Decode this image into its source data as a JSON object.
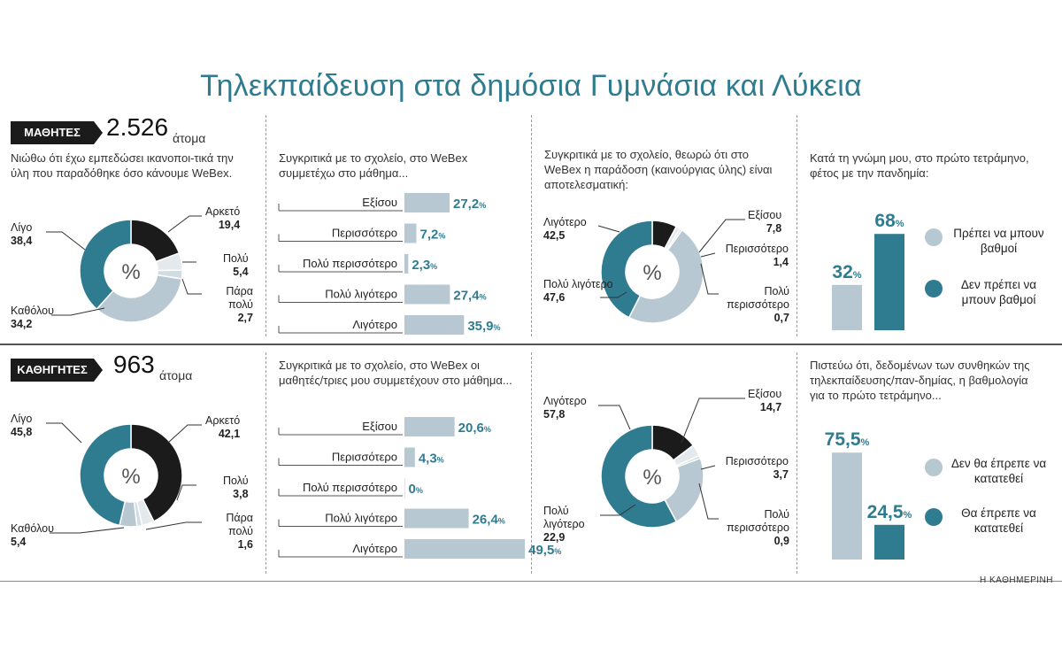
{
  "title": "Τηλεκπαίδευση στα δημόσια Γυμνάσια και Λύκεια",
  "source": "Η ΚΑΘΗΜΕΡΙΝΗ",
  "colors": {
    "dark": "#1b1b1b",
    "teal": "#2f7c91",
    "light": "#b8c8d2",
    "pale": "#d9e2e8",
    "accent": "#2f7c91"
  },
  "sections": [
    {
      "group": "ΜΑΘΗΤΕΣ",
      "count": "2.526",
      "unit": "άτομα"
    },
    {
      "group": "ΚΑΘΗΓΗΤΕΣ",
      "count": "963",
      "unit": "άτομα"
    }
  ],
  "chart_data": [
    {
      "type": "pie",
      "variant": "donut",
      "center_label": "%",
      "question": "Νιώθω ότι έχω εμπεδώσει ικανοποι-τικά την ύλη που παραδόθηκε όσο κάνουμε WeBex.",
      "slices": [
        {
          "label": "Αρκετό",
          "value": 19.4,
          "value_label": "19,4",
          "color": "#1b1b1b"
        },
        {
          "label": "Πολύ",
          "value": 5.4,
          "value_label": "5,4",
          "color": "#e3e9ed"
        },
        {
          "label": "Πάρα πολύ",
          "value": 2.7,
          "value_label": "2,7",
          "color": "#d0dbe2"
        },
        {
          "label": "Καθόλου",
          "value": 34.2,
          "value_label": "34,2",
          "color": "#b8c8d2"
        },
        {
          "label": "Λίγο",
          "value": 38.4,
          "value_label": "38,4",
          "color": "#2f7c91"
        }
      ]
    },
    {
      "type": "bar",
      "orientation": "horizontal",
      "question": "Συγκριτικά με το σχολείο, στο WeBex συμμετέχω στο μάθημα...",
      "categories": [
        "Εξίσου",
        "Περισσότερο",
        "Πολύ περισσότερο",
        "Πολύ λιγότερο",
        "Λιγότερο"
      ],
      "values": [
        27.2,
        7.2,
        2.3,
        27.4,
        35.9
      ],
      "value_labels": [
        "27,2",
        "7,2",
        "2,3",
        "27,4",
        "35,9"
      ],
      "unit": "%"
    },
    {
      "type": "pie",
      "variant": "donut",
      "center_label": "%",
      "question": "Συγκριτικά με το σχολείο, θεωρώ ότι στο WeBex η παράδοση (καινούργιας ύλης) είναι αποτελεσματική:",
      "slices": [
        {
          "label": "Εξίσου",
          "value": 7.8,
          "value_label": "7,8",
          "color": "#1b1b1b"
        },
        {
          "label": "Περισσότερο",
          "value": 1.4,
          "value_label": "1,4",
          "color": "#e3e9ed"
        },
        {
          "label": "Πολύ περισσότερο",
          "value": 0.7,
          "value_label": "0,7",
          "color": "#d0dbe2"
        },
        {
          "label": "Πολύ λιγότερο",
          "value": 47.6,
          "value_label": "47,6",
          "color": "#b8c8d2"
        },
        {
          "label": "Λιγότερο",
          "value": 42.5,
          "value_label": "42,5",
          "color": "#2f7c91"
        }
      ]
    },
    {
      "type": "bar",
      "orientation": "vertical",
      "question": "Κατά τη γνώμη μου, στο πρώτο τετράμηνο, φέτος με την πανδημία:",
      "categories": [
        "Πρέπει να μπουν βαθμοί",
        "Δεν πρέπει να μπουν βαθμοί"
      ],
      "values": [
        32,
        68
      ],
      "value_labels": [
        "32",
        "68"
      ],
      "unit": "%",
      "colors": [
        "#b8c8d2",
        "#2f7c91"
      ]
    },
    {
      "type": "pie",
      "variant": "donut",
      "center_label": "%",
      "slices": [
        {
          "label": "Αρκετό",
          "value": 42.1,
          "value_label": "42,1",
          "color": "#1b1b1b"
        },
        {
          "label": "Πολύ",
          "value": 3.8,
          "value_label": "3,8",
          "color": "#e3e9ed"
        },
        {
          "label": "Πάρα πολύ",
          "value": 1.6,
          "value_label": "1,6",
          "color": "#d0dbe2"
        },
        {
          "label": "Καθόλου",
          "value": 5.4,
          "value_label": "5,4",
          "color": "#b8c8d2"
        },
        {
          "label": "Λίγο",
          "value": 45.8,
          "value_label": "45,8",
          "color": "#2f7c91"
        }
      ]
    },
    {
      "type": "bar",
      "orientation": "horizontal",
      "question": "Συγκριτικά με το σχολείο, στο WeBex οι μαθητές/τριες μου συμμετέχουν στο μάθημα...",
      "categories": [
        "Εξίσου",
        "Περισσότερο",
        "Πολύ περισσότερο",
        "Πολύ λιγότερο",
        "Λιγότερο"
      ],
      "values": [
        20.6,
        4.3,
        0,
        26.4,
        49.5
      ],
      "value_labels": [
        "20,6",
        "4,3",
        "0",
        "26,4",
        "49,5"
      ],
      "unit": "%"
    },
    {
      "type": "pie",
      "variant": "donut",
      "center_label": "%",
      "slices": [
        {
          "label": "Εξίσου",
          "value": 14.7,
          "value_label": "14,7",
          "color": "#1b1b1b"
        },
        {
          "label": "Περισσότερο",
          "value": 3.7,
          "value_label": "3,7",
          "color": "#e3e9ed"
        },
        {
          "label": "Πολύ περισσότερο",
          "value": 0.9,
          "value_label": "0,9",
          "color": "#d0dbe2"
        },
        {
          "label": "Πολύ λιγότερο",
          "value": 22.9,
          "value_label": "22,9",
          "color": "#b8c8d2"
        },
        {
          "label": "Λιγότερο",
          "value": 57.8,
          "value_label": "57,8",
          "color": "#2f7c91"
        }
      ]
    },
    {
      "type": "bar",
      "orientation": "vertical",
      "question": "Πιστεύω ότι, δεδομένων των συνθηκών της τηλεκπαίδευσης/παν-δημίας, η βαθμολογία για το πρώτο τετράμηνο...",
      "categories": [
        "Δεν θα έπρεπε να κατατεθεί",
        "Θα έπρεπε να κατατεθεί"
      ],
      "values": [
        75.5,
        24.5
      ],
      "value_labels": [
        "75,5",
        "24,5"
      ],
      "unit": "%",
      "colors": [
        "#b8c8d2",
        "#2f7c91"
      ]
    }
  ]
}
